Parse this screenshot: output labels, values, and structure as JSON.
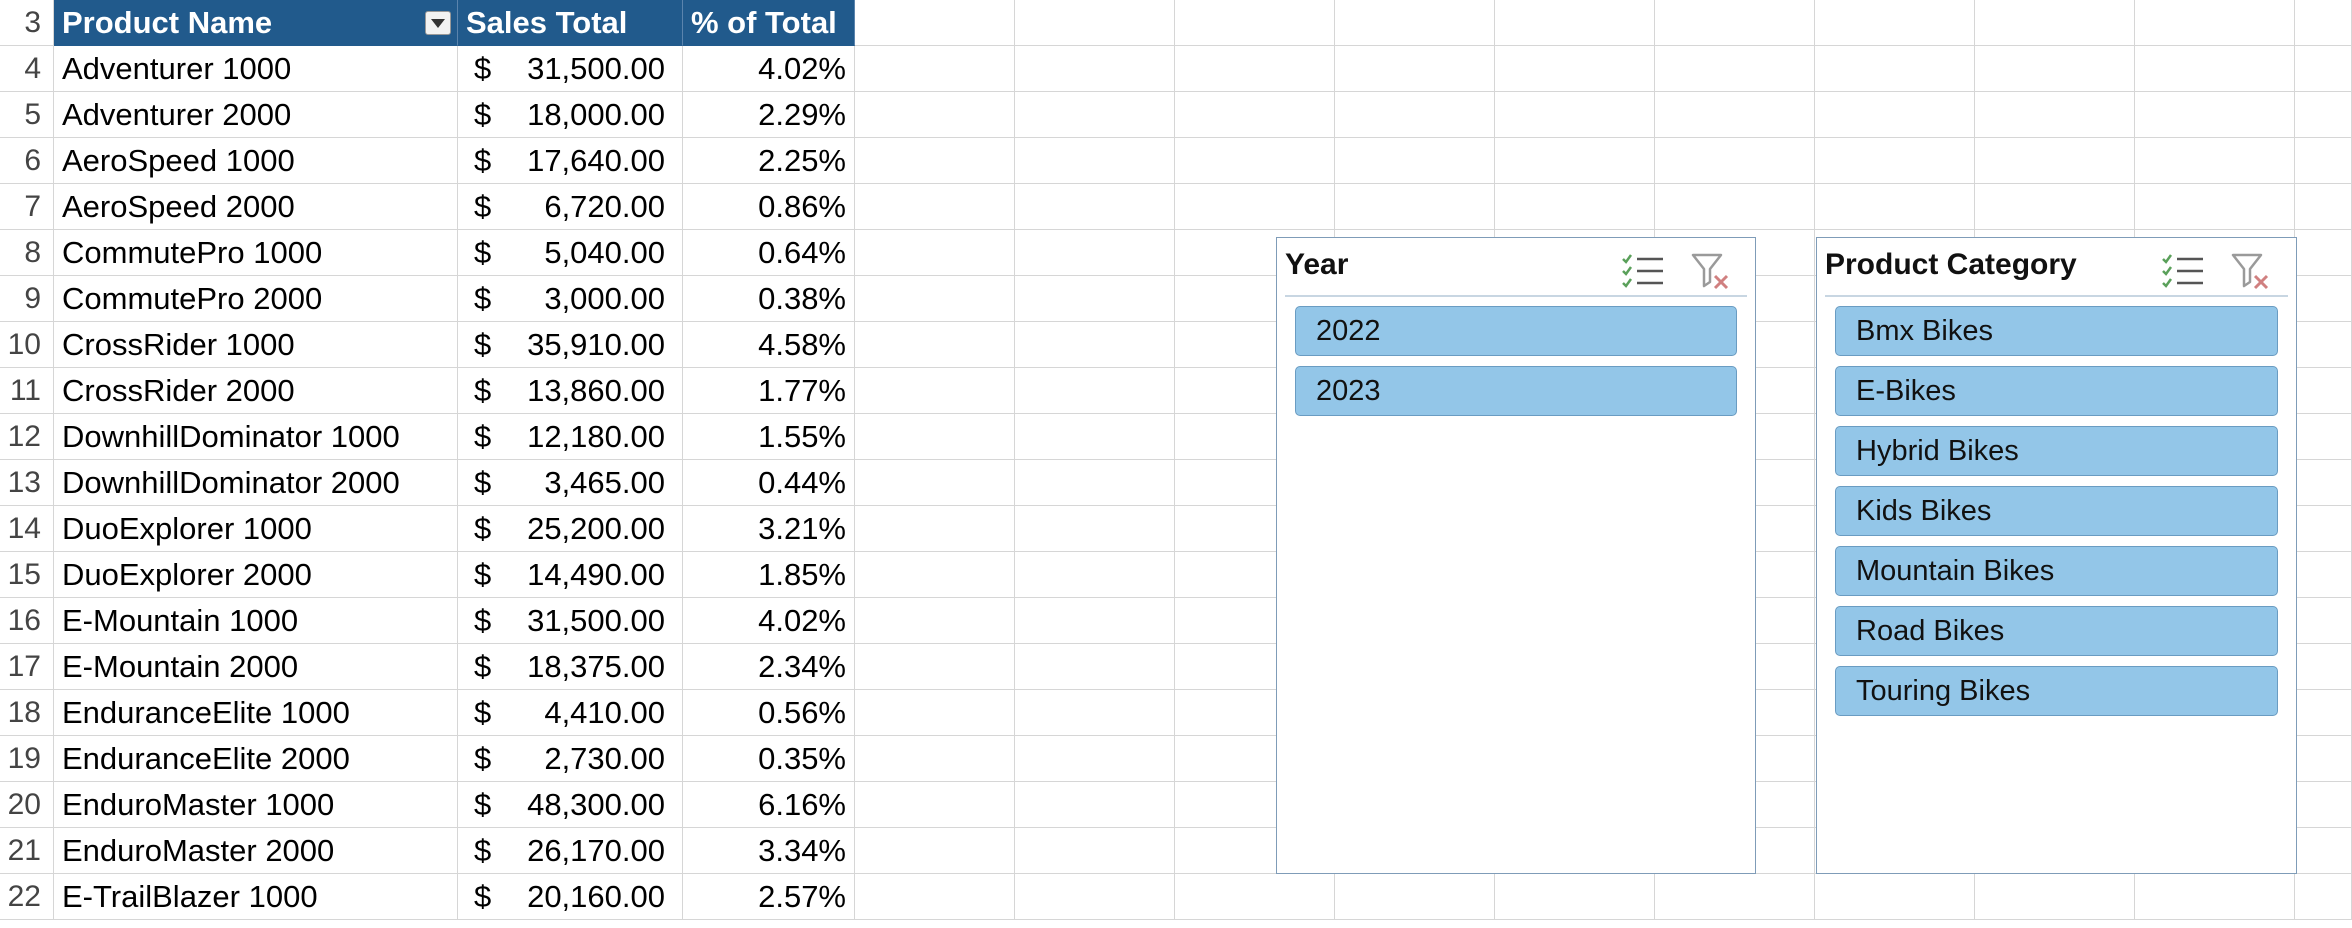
{
  "table": {
    "header": {
      "row_number": "3",
      "product": "Product Name",
      "sales": "Sales Total",
      "pct": "% of Total"
    },
    "rows": [
      {
        "n": "4",
        "product": "Adventurer 1000",
        "currency": "$",
        "amount": "31,500.00",
        "pct": "4.02%"
      },
      {
        "n": "5",
        "product": "Adventurer 2000",
        "currency": "$",
        "amount": "18,000.00",
        "pct": "2.29%"
      },
      {
        "n": "6",
        "product": "AeroSpeed 1000",
        "currency": "$",
        "amount": "17,640.00",
        "pct": "2.25%"
      },
      {
        "n": "7",
        "product": "AeroSpeed 2000",
        "currency": "$",
        "amount": "6,720.00",
        "pct": "0.86%"
      },
      {
        "n": "8",
        "product": "CommutePro 1000",
        "currency": "$",
        "amount": "5,040.00",
        "pct": "0.64%"
      },
      {
        "n": "9",
        "product": "CommutePro 2000",
        "currency": "$",
        "amount": "3,000.00",
        "pct": "0.38%"
      },
      {
        "n": "10",
        "product": "CrossRider 1000",
        "currency": "$",
        "amount": "35,910.00",
        "pct": "4.58%"
      },
      {
        "n": "11",
        "product": "CrossRider 2000",
        "currency": "$",
        "amount": "13,860.00",
        "pct": "1.77%"
      },
      {
        "n": "12",
        "product": "DownhillDominator 1000",
        "currency": "$",
        "amount": "12,180.00",
        "pct": "1.55%"
      },
      {
        "n": "13",
        "product": "DownhillDominator 2000",
        "currency": "$",
        "amount": "3,465.00",
        "pct": "0.44%"
      },
      {
        "n": "14",
        "product": "DuoExplorer 1000",
        "currency": "$",
        "amount": "25,200.00",
        "pct": "3.21%"
      },
      {
        "n": "15",
        "product": "DuoExplorer 2000",
        "currency": "$",
        "amount": "14,490.00",
        "pct": "1.85%"
      },
      {
        "n": "16",
        "product": "E-Mountain 1000",
        "currency": "$",
        "amount": "31,500.00",
        "pct": "4.02%"
      },
      {
        "n": "17",
        "product": "E-Mountain 2000",
        "currency": "$",
        "amount": "18,375.00",
        "pct": "2.34%"
      },
      {
        "n": "18",
        "product": "EnduranceElite 1000",
        "currency": "$",
        "amount": "4,410.00",
        "pct": "0.56%"
      },
      {
        "n": "19",
        "product": "EnduranceElite 2000",
        "currency": "$",
        "amount": "2,730.00",
        "pct": "0.35%"
      },
      {
        "n": "20",
        "product": "EnduroMaster 1000",
        "currency": "$",
        "amount": "48,300.00",
        "pct": "6.16%"
      },
      {
        "n": "21",
        "product": "EnduroMaster 2000",
        "currency": "$",
        "amount": "26,170.00",
        "pct": "3.34%"
      },
      {
        "n": "22",
        "product": "E-TrailBlazer 1000",
        "currency": "$",
        "amount": "20,160.00",
        "pct": "2.57%"
      }
    ]
  },
  "slicers": {
    "year": {
      "title": "Year",
      "items": [
        "2022",
        "2023"
      ]
    },
    "category": {
      "title": "Product Category",
      "items": [
        "Bmx Bikes",
        "E-Bikes",
        "Hybrid Bikes",
        "Kids Bikes",
        "Mountain Bikes",
        "Road Bikes",
        "Touring Bikes"
      ]
    }
  },
  "icons": {
    "multi_select": "multi-select-icon",
    "clear_filter": "clear-filter-icon",
    "dropdown": "filter-dropdown-icon"
  },
  "colors": {
    "header_bg": "#215a8c",
    "slicer_item": "#93c6e8",
    "gridline": "#d6d6d6"
  }
}
